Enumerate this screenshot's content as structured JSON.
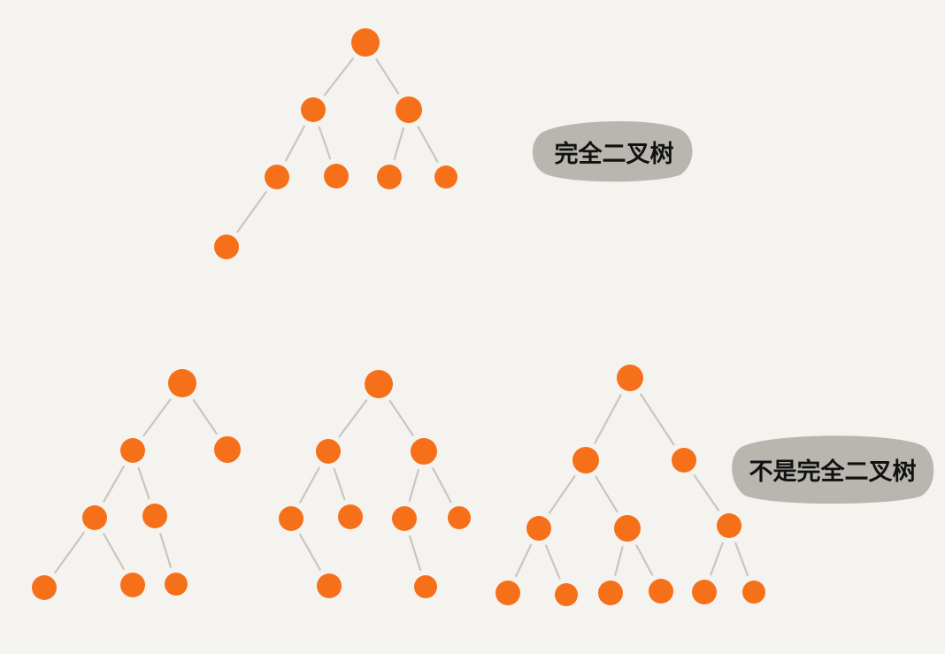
{
  "colors": {
    "background": "#f5f3ef",
    "node": "#f6701a",
    "edge": "#c9c6c0",
    "label_background": "#b8b6ae",
    "label_text": "#111111"
  },
  "labels": {
    "complete": "完全二叉树",
    "not_complete": "不是完全二叉树"
  },
  "trees": [
    {
      "name": "complete-tree",
      "category": "complete",
      "nodes": [
        "root",
        "l",
        "r",
        "ll",
        "lr",
        "rl",
        "rr",
        "lll"
      ],
      "edges": [
        [
          "root",
          "l"
        ],
        [
          "root",
          "r"
        ],
        [
          "l",
          "ll"
        ],
        [
          "l",
          "lr"
        ],
        [
          "r",
          "rl"
        ],
        [
          "r",
          "rr"
        ],
        [
          "ll",
          "lll"
        ]
      ]
    },
    {
      "name": "not-complete-tree-1",
      "category": "not_complete",
      "nodes": [
        "root",
        "l",
        "r",
        "ll",
        "lr",
        "lll",
        "llr",
        "lrr"
      ],
      "edges": [
        [
          "root",
          "l"
        ],
        [
          "root",
          "r"
        ],
        [
          "l",
          "ll"
        ],
        [
          "l",
          "lr"
        ],
        [
          "ll",
          "lll"
        ],
        [
          "ll",
          "llr"
        ],
        [
          "lr",
          "lrr"
        ]
      ]
    },
    {
      "name": "not-complete-tree-2",
      "category": "not_complete",
      "nodes": [
        "root",
        "l",
        "r",
        "ll",
        "lr",
        "rl",
        "rr",
        "llr",
        "rlr"
      ],
      "edges": [
        [
          "root",
          "l"
        ],
        [
          "root",
          "r"
        ],
        [
          "l",
          "ll"
        ],
        [
          "l",
          "lr"
        ],
        [
          "r",
          "rl"
        ],
        [
          "r",
          "rr"
        ],
        [
          "ll",
          "llr"
        ],
        [
          "rl",
          "rlr"
        ]
      ]
    },
    {
      "name": "not-complete-tree-3",
      "category": "not_complete",
      "nodes": [
        "root",
        "l",
        "r",
        "ll",
        "lr",
        "rr",
        "lll",
        "llr",
        "lrl",
        "lrr",
        "rrl",
        "rrr"
      ],
      "edges": [
        [
          "root",
          "l"
        ],
        [
          "root",
          "r"
        ],
        [
          "l",
          "ll"
        ],
        [
          "l",
          "lr"
        ],
        [
          "r",
          "rr"
        ],
        [
          "ll",
          "lll"
        ],
        [
          "ll",
          "llr"
        ],
        [
          "lr",
          "lrl"
        ],
        [
          "lr",
          "lrr"
        ],
        [
          "rr",
          "rrl"
        ],
        [
          "rr",
          "rrr"
        ]
      ]
    }
  ]
}
